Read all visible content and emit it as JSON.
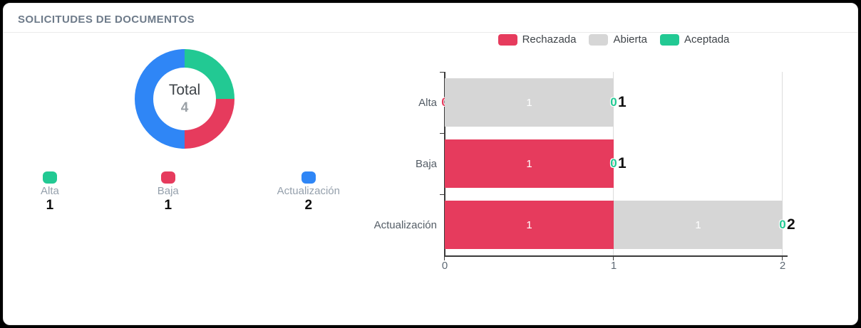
{
  "panel": {
    "title": "SOLICITUDES DE DOCUMENTOS"
  },
  "colors": {
    "rechazada_red": "#e63b5d",
    "abierta_gray": "#d6d6d6",
    "aceptada_green": "#22c993",
    "actualizacion_blue": "#2f86f6"
  },
  "donut": {
    "center_label": "Total",
    "center_value": "4",
    "slices": [
      {
        "label": "Alta",
        "value": 1,
        "color": "#22c993"
      },
      {
        "label": "Baja",
        "value": 1,
        "color": "#e63b5d"
      },
      {
        "label": "Actualización",
        "value": 2,
        "color": "#2f86f6"
      }
    ]
  },
  "chart_data": {
    "type": "bar",
    "orientation": "horizontal",
    "stacked": true,
    "title": "",
    "categories": [
      "Alta",
      "Baja",
      "Actualización"
    ],
    "series": [
      {
        "name": "Rechazada",
        "color": "#e63b5d",
        "values": [
          0,
          1,
          1
        ]
      },
      {
        "name": "Abierta",
        "color": "#d6d6d6",
        "values": [
          1,
          0,
          1
        ]
      },
      {
        "name": "Aceptada",
        "color": "#22c993",
        "values": [
          0,
          0,
          0
        ]
      }
    ],
    "totals": [
      1,
      1,
      2
    ],
    "x_ticks": [
      0,
      1,
      2
    ],
    "xlim": [
      0,
      2
    ],
    "grid": true,
    "legend_position": "top"
  }
}
